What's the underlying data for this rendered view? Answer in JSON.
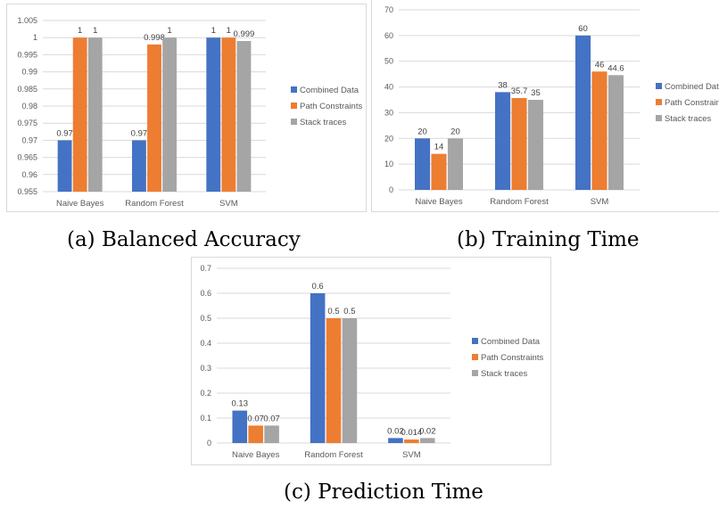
{
  "captions": {
    "a": "(a) Balanced Accuracy",
    "b": "(b) Training Time",
    "c": "(c) Prediction Time"
  },
  "colors": {
    "series": [
      "#4472C4",
      "#ED7D31",
      "#A5A5A5"
    ],
    "grid": "#d9d9d9",
    "axis_text": "#595959"
  },
  "chart_data": [
    {
      "id": "a",
      "type": "bar",
      "categories": [
        "Naive Bayes",
        "Random Forest",
        "SVM"
      ],
      "series": [
        {
          "name": "Combined Data",
          "values": [
            0.97,
            0.97,
            1
          ],
          "labels": [
            "0.97",
            "0.97",
            "1"
          ]
        },
        {
          "name": "Path Constraints",
          "values": [
            1,
            0.998,
            1
          ],
          "labels": [
            "1",
            "0.998",
            "1"
          ]
        },
        {
          "name": "Stack traces",
          "values": [
            1,
            1,
            0.999
          ],
          "labels": [
            "1",
            "1",
            "0.999"
          ]
        }
      ],
      "ylim": [
        0.955,
        1.005
      ],
      "yticks": [
        0.955,
        0.96,
        0.965,
        0.97,
        0.975,
        0.98,
        0.985,
        0.99,
        0.995,
        1,
        1.005
      ],
      "ytick_labels": [
        "0.955",
        "0.96",
        "0.965",
        "0.97",
        "0.975",
        "0.98",
        "0.985",
        "0.99",
        "0.995",
        "1",
        "1.005"
      ],
      "grid": true,
      "legend": "right"
    },
    {
      "id": "b",
      "type": "bar",
      "categories": [
        "Naive Bayes",
        "Random Forest",
        "SVM"
      ],
      "series": [
        {
          "name": "Combined Data",
          "values": [
            20,
            38,
            60
          ],
          "labels": [
            "20",
            "38",
            "60"
          ]
        },
        {
          "name": "Path Constraints",
          "values": [
            14,
            35.7,
            46
          ],
          "labels": [
            "14",
            "35.7",
            "46"
          ]
        },
        {
          "name": "Stack traces",
          "values": [
            20,
            35,
            44.6
          ],
          "labels": [
            "20",
            "35",
            "44.6"
          ]
        }
      ],
      "ylim": [
        0,
        70
      ],
      "yticks": [
        0,
        10,
        20,
        30,
        40,
        50,
        60,
        70
      ],
      "ytick_labels": [
        "0",
        "10",
        "20",
        "30",
        "40",
        "50",
        "60",
        "70"
      ],
      "grid": true,
      "legend": "right"
    },
    {
      "id": "c",
      "type": "bar",
      "categories": [
        "Naive Bayes",
        "Random Forest",
        "SVM"
      ],
      "series": [
        {
          "name": "Combined Data",
          "values": [
            0.13,
            0.6,
            0.02
          ],
          "labels": [
            "0.13",
            "0.6",
            "0.02"
          ]
        },
        {
          "name": "Path Constraints",
          "values": [
            0.07,
            0.5,
            0.014
          ],
          "labels": [
            "0.07",
            "0.5",
            "0.014"
          ]
        },
        {
          "name": "Stack traces",
          "values": [
            0.07,
            0.5,
            0.02
          ],
          "labels": [
            "0.07",
            "0.5",
            "0.02"
          ]
        }
      ],
      "ylim": [
        0,
        0.7
      ],
      "yticks": [
        0,
        0.1,
        0.2,
        0.3,
        0.4,
        0.5,
        0.6,
        0.7
      ],
      "ytick_labels": [
        "0",
        "0.1",
        "0.2",
        "0.3",
        "0.4",
        "0.5",
        "0.6",
        "0.7"
      ],
      "grid": true,
      "legend": "right"
    }
  ]
}
